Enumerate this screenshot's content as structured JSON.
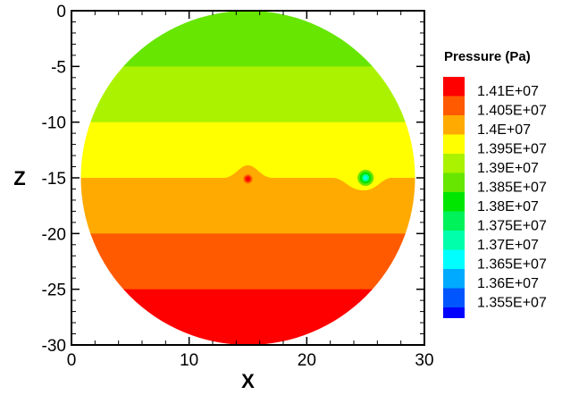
{
  "chart_data": {
    "type": "heatmap",
    "title": "",
    "xlabel": "X",
    "ylabel": "Z",
    "xlim": [
      0,
      30
    ],
    "ylim": [
      -30,
      0
    ],
    "x_ticks": [
      "0",
      "10",
      "20",
      "30"
    ],
    "y_ticks": [
      "0",
      "-5",
      "-10",
      "-15",
      "-20",
      "-25",
      "-30"
    ],
    "x_tick_values": [
      0,
      10,
      20,
      30
    ],
    "y_tick_values": [
      0,
      -5,
      -10,
      -15,
      -20,
      -25,
      -30
    ],
    "domain": {
      "shape": "circle",
      "center": [
        15,
        -15
      ],
      "radius": 15
    },
    "bands": [
      {
        "z_top": 0,
        "z_bottom": -5,
        "color": "#66e600"
      },
      {
        "z_top": -5,
        "z_bottom": -10,
        "color": "#aaf200"
      },
      {
        "z_top": -10,
        "z_bottom": -15,
        "color": "#ffff00"
      },
      {
        "z_top": -15,
        "z_bottom": -20,
        "color": "#ffaa00"
      },
      {
        "z_top": -20,
        "z_bottom": -25,
        "color": "#ff5a00"
      },
      {
        "z_top": -25,
        "z_bottom": -30,
        "color": "#ff0000"
      }
    ],
    "features": [
      {
        "type": "source-point",
        "x": 15,
        "z": -15.1,
        "color": "#ff0000"
      },
      {
        "type": "sink-point",
        "x": 25,
        "z": -15,
        "color": "#00ff99"
      }
    ],
    "legend": {
      "title": "Pressure (Pa)",
      "placement": "right",
      "entries": [
        {
          "label": "1.41E+07",
          "color": "#ff0000"
        },
        {
          "label": "1.405E+07",
          "color": "#ff5a00"
        },
        {
          "label": "1.4E+07",
          "color": "#ffaa00"
        },
        {
          "label": "1.395E+07",
          "color": "#ffff00"
        },
        {
          "label": "1.39E+07",
          "color": "#aaf200"
        },
        {
          "label": "1.385E+07",
          "color": "#66e600"
        },
        {
          "label": "1.38E+07",
          "color": "#00e600"
        },
        {
          "label": "1.375E+07",
          "color": "#00f25a"
        },
        {
          "label": "1.37E+07",
          "color": "#00ffaa"
        },
        {
          "label": "1.365E+07",
          "color": "#00ffff"
        },
        {
          "label": "1.36E+07",
          "color": "#00aaff"
        },
        {
          "label": "1.355E+07",
          "color": "#0055ff"
        },
        {
          "label": "",
          "color": "#0000ff"
        }
      ]
    }
  }
}
